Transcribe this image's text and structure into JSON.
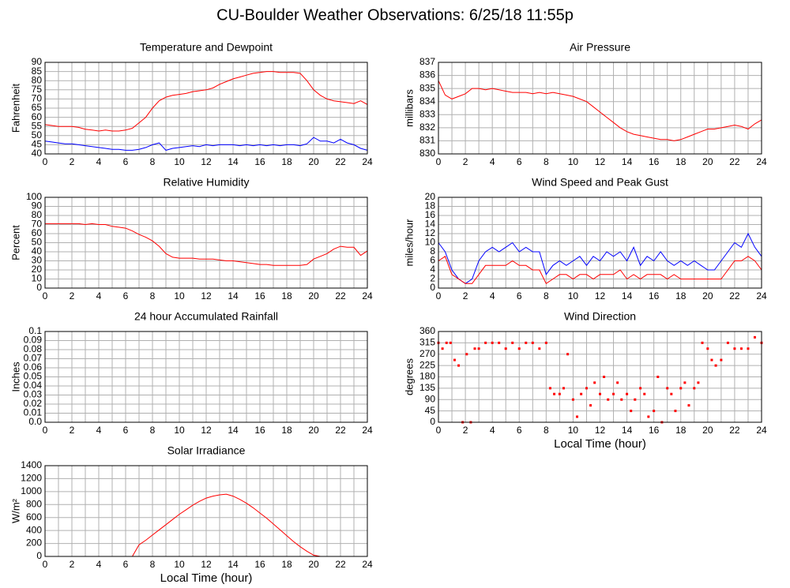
{
  "title": "CU-Boulder Weather Observations: 6/25/18 11:55p",
  "chart_data": [
    {
      "type": "line",
      "title": "Temperature and Dewpoint",
      "ylabel": "Fahrenheit",
      "x": [
        0,
        0.5,
        1,
        1.5,
        2,
        2.5,
        3,
        3.5,
        4,
        4.5,
        5,
        5.5,
        6,
        6.5,
        7,
        7.5,
        8,
        8.5,
        9,
        9.5,
        10,
        10.5,
        11,
        11.5,
        12,
        12.5,
        13,
        13.5,
        14,
        14.5,
        15,
        15.5,
        16,
        16.5,
        17,
        17.5,
        18,
        18.5,
        19,
        19.5,
        20,
        20.5,
        21,
        21.5,
        22,
        22.5,
        23,
        23.5,
        24
      ],
      "series": [
        {
          "color": "#ff0000",
          "values": [
            56,
            55.5,
            55,
            55,
            55,
            54.5,
            53.5,
            53,
            52.5,
            53,
            52.5,
            52.5,
            53,
            54,
            57,
            60,
            65,
            69,
            71,
            72,
            72.5,
            73,
            74,
            74.5,
            75,
            76,
            78,
            79.5,
            81,
            82,
            83,
            84,
            84.5,
            85,
            85,
            84.5,
            84.5,
            84.5,
            84,
            80,
            75,
            72,
            70,
            69,
            68.5,
            68,
            67.5,
            69,
            67
          ]
        },
        {
          "color": "#0000ff",
          "values": [
            47,
            46.5,
            46,
            45.5,
            45.5,
            45,
            44.5,
            44,
            43.5,
            43,
            42.5,
            42.5,
            42,
            42,
            42.5,
            43.5,
            45,
            46,
            42,
            43,
            43.5,
            44,
            44.5,
            44,
            45,
            44.5,
            45,
            45,
            45,
            44.5,
            45,
            44.5,
            45,
            44.5,
            45,
            44.5,
            45,
            45,
            44.5,
            45.5,
            49,
            47,
            47,
            46,
            48,
            46,
            45,
            43,
            42
          ]
        }
      ],
      "xlim": [
        0,
        24
      ],
      "xticks": [
        0,
        2,
        4,
        6,
        8,
        10,
        12,
        14,
        16,
        18,
        20,
        22,
        24
      ],
      "xgrid": [
        0,
        1,
        2,
        3,
        4,
        5,
        6,
        7,
        8,
        9,
        10,
        11,
        12,
        13,
        14,
        15,
        16,
        17,
        18,
        19,
        20,
        21,
        22,
        23,
        24
      ],
      "ylim": [
        40,
        90
      ],
      "yticks": [
        40,
        45,
        50,
        55,
        60,
        65,
        70,
        75,
        80,
        85,
        90
      ],
      "grid": true
    },
    {
      "type": "line",
      "title": "Air Pressure",
      "ylabel": "millibars",
      "x": [
        0,
        0.5,
        1,
        1.5,
        2,
        2.5,
        3,
        3.5,
        4,
        4.5,
        5,
        5.5,
        6,
        6.5,
        7,
        7.5,
        8,
        8.5,
        9,
        9.5,
        10,
        10.5,
        11,
        11.5,
        12,
        12.5,
        13,
        13.5,
        14,
        14.5,
        15,
        15.5,
        16,
        16.5,
        17,
        17.5,
        18,
        18.5,
        19,
        19.5,
        20,
        20.5,
        21,
        21.5,
        22,
        22.5,
        23,
        23.5,
        24
      ],
      "series": [
        {
          "color": "#ff0000",
          "values": [
            835.6,
            834.5,
            834.2,
            834.4,
            834.6,
            835,
            835,
            834.9,
            835,
            834.9,
            834.8,
            834.7,
            834.7,
            834.7,
            834.6,
            834.7,
            834.6,
            834.7,
            834.6,
            834.5,
            834.4,
            834.2,
            834,
            833.6,
            833.2,
            832.8,
            832.4,
            832,
            831.7,
            831.5,
            831.4,
            831.3,
            831.2,
            831.1,
            831.1,
            831,
            831.1,
            831.3,
            831.5,
            831.7,
            831.9,
            831.9,
            832,
            832.1,
            832.2,
            832.1,
            831.9,
            832.3,
            832.6
          ]
        }
      ],
      "xlim": [
        0,
        24
      ],
      "xticks": [
        0,
        2,
        4,
        6,
        8,
        10,
        12,
        14,
        16,
        18,
        20,
        22,
        24
      ],
      "xgrid": [
        0,
        1,
        2,
        3,
        4,
        5,
        6,
        7,
        8,
        9,
        10,
        11,
        12,
        13,
        14,
        15,
        16,
        17,
        18,
        19,
        20,
        21,
        22,
        23,
        24
      ],
      "ylim": [
        830,
        837
      ],
      "yticks": [
        830,
        831,
        832,
        833,
        834,
        835,
        836,
        837
      ],
      "grid": true
    },
    {
      "type": "line",
      "title": "Relative Humidity",
      "ylabel": "Percent",
      "x": [
        0,
        0.5,
        1,
        1.5,
        2,
        2.5,
        3,
        3.5,
        4,
        4.5,
        5,
        5.5,
        6,
        6.5,
        7,
        7.5,
        8,
        8.5,
        9,
        9.5,
        10,
        10.5,
        11,
        11.5,
        12,
        12.5,
        13,
        13.5,
        14,
        14.5,
        15,
        15.5,
        16,
        16.5,
        17,
        17.5,
        18,
        18.5,
        19,
        19.5,
        20,
        20.5,
        21,
        21.5,
        22,
        22.5,
        23,
        23.5,
        24
      ],
      "series": [
        {
          "color": "#ff0000",
          "values": [
            71,
            71,
            71,
            71,
            71,
            71,
            70,
            71,
            70,
            70,
            68,
            67,
            66,
            63,
            59,
            56,
            52,
            46,
            38,
            34,
            33,
            33,
            33,
            32,
            32,
            32,
            31,
            30,
            30,
            29,
            28,
            27,
            26,
            26,
            25,
            25,
            25,
            25,
            25,
            26,
            32,
            35,
            38,
            43,
            46,
            45,
            45,
            36,
            41
          ]
        }
      ],
      "xlim": [
        0,
        24
      ],
      "xticks": [
        0,
        2,
        4,
        6,
        8,
        10,
        12,
        14,
        16,
        18,
        20,
        22,
        24
      ],
      "xgrid": [
        0,
        1,
        2,
        3,
        4,
        5,
        6,
        7,
        8,
        9,
        10,
        11,
        12,
        13,
        14,
        15,
        16,
        17,
        18,
        19,
        20,
        21,
        22,
        23,
        24
      ],
      "ylim": [
        0,
        100
      ],
      "yticks": [
        0,
        10,
        20,
        30,
        40,
        50,
        60,
        70,
        80,
        90,
        100
      ],
      "grid": true
    },
    {
      "type": "line",
      "title": "Wind Speed and Peak Gust",
      "ylabel": "miles/hour",
      "x": [
        0,
        0.5,
        1,
        1.5,
        2,
        2.5,
        3,
        3.5,
        4,
        4.5,
        5,
        5.5,
        6,
        6.5,
        7,
        7.5,
        8,
        8.5,
        9,
        9.5,
        10,
        10.5,
        11,
        11.5,
        12,
        12.5,
        13,
        13.5,
        14,
        14.5,
        15,
        15.5,
        16,
        16.5,
        17,
        17.5,
        18,
        18.5,
        19,
        19.5,
        20,
        20.5,
        21,
        21.5,
        22,
        22.5,
        23,
        23.5,
        24
      ],
      "series": [
        {
          "color": "#0000ff",
          "values": [
            10,
            8,
            4,
            2,
            1,
            2,
            6,
            8,
            9,
            8,
            9,
            10,
            8,
            9,
            8,
            8,
            3,
            5,
            6,
            5,
            6,
            7,
            5,
            7,
            6,
            8,
            7,
            8,
            6,
            9,
            5,
            7,
            6,
            8,
            6,
            5,
            6,
            5,
            6,
            5,
            4,
            4,
            6,
            8,
            10,
            9,
            12,
            9,
            7
          ]
        },
        {
          "color": "#ff0000",
          "values": [
            6,
            7,
            3,
            2,
            1,
            1,
            3,
            5,
            5,
            5,
            5,
            6,
            5,
            5,
            4,
            4,
            1,
            2,
            3,
            3,
            2,
            3,
            3,
            2,
            3,
            3,
            3,
            4,
            2,
            3,
            2,
            3,
            3,
            3,
            2,
            3,
            2,
            2,
            2,
            2,
            2,
            2,
            2,
            4,
            6,
            6,
            7,
            6,
            4
          ]
        }
      ],
      "xlim": [
        0,
        24
      ],
      "xticks": [
        0,
        2,
        4,
        6,
        8,
        10,
        12,
        14,
        16,
        18,
        20,
        22,
        24
      ],
      "xgrid": [
        0,
        1,
        2,
        3,
        4,
        5,
        6,
        7,
        8,
        9,
        10,
        11,
        12,
        13,
        14,
        15,
        16,
        17,
        18,
        19,
        20,
        21,
        22,
        23,
        24
      ],
      "ylim": [
        0,
        20
      ],
      "yticks": [
        0,
        2,
        4,
        6,
        8,
        10,
        12,
        14,
        16,
        18,
        20
      ],
      "grid": true
    },
    {
      "type": "line",
      "title": "24 hour Accumulated Rainfall",
      "ylabel": "Inches",
      "x": [
        0,
        24
      ],
      "series": [
        {
          "color": "#ff0000",
          "values": [
            0,
            0
          ]
        }
      ],
      "xlim": [
        0,
        24
      ],
      "xticks": [
        0,
        2,
        4,
        6,
        8,
        10,
        12,
        14,
        16,
        18,
        20,
        22,
        24
      ],
      "xgrid": [
        0,
        1,
        2,
        3,
        4,
        5,
        6,
        7,
        8,
        9,
        10,
        11,
        12,
        13,
        14,
        15,
        16,
        17,
        18,
        19,
        20,
        21,
        22,
        23,
        24
      ],
      "ylim": [
        0,
        0.1
      ],
      "yticks": [
        {
          "value": 0,
          "label": "0.0"
        },
        0.01,
        0.02,
        0.03,
        0.04,
        0.05,
        0.06,
        0.07,
        0.08,
        0.09,
        0.1
      ],
      "grid": true
    },
    {
      "type": "scatter",
      "title": "Wind Direction",
      "ylabel": "degrees",
      "xlabel": "Local Time (hour)",
      "x": [
        0,
        0.3,
        0.6,
        0.9,
        1.2,
        1.5,
        1.8,
        2.1,
        2.4,
        2.7,
        3,
        3.5,
        4,
        4.5,
        5,
        5.5,
        6,
        6.5,
        7,
        7.5,
        8,
        8.3,
        8.6,
        9,
        9.3,
        9.6,
        10,
        10.3,
        10.6,
        11,
        11.3,
        11.6,
        12,
        12.3,
        12.6,
        13,
        13.3,
        13.6,
        14,
        14.3,
        14.6,
        15,
        15.3,
        15.6,
        16,
        16.3,
        16.6,
        17,
        17.3,
        17.6,
        18,
        18.3,
        18.6,
        19,
        19.3,
        19.6,
        20,
        20.3,
        20.6,
        21,
        21.5,
        22,
        22.5,
        23,
        23.5,
        24
      ],
      "series": [
        {
          "color": "#ff0000",
          "values": [
            315,
            292,
            315,
            315,
            247,
            225,
            0,
            270,
            0,
            292,
            292,
            315,
            315,
            315,
            292,
            315,
            292,
            315,
            315,
            292,
            315,
            135,
            112,
            112,
            135,
            270,
            90,
            22,
            112,
            135,
            67,
            157,
            112,
            180,
            90,
            112,
            157,
            90,
            112,
            45,
            90,
            135,
            112,
            22,
            45,
            180,
            0,
            135,
            112,
            45,
            135,
            157,
            67,
            135,
            157,
            315,
            292,
            247,
            225,
            247,
            315,
            292,
            292,
            292,
            337,
            315
          ]
        }
      ],
      "xlim": [
        0,
        24
      ],
      "xticks": [
        0,
        2,
        4,
        6,
        8,
        10,
        12,
        14,
        16,
        18,
        20,
        22,
        24
      ],
      "xgrid": [
        0,
        1,
        2,
        3,
        4,
        5,
        6,
        7,
        8,
        9,
        10,
        11,
        12,
        13,
        14,
        15,
        16,
        17,
        18,
        19,
        20,
        21,
        22,
        23,
        24
      ],
      "ylim": [
        0,
        360
      ],
      "yticks": [
        0,
        45,
        90,
        135,
        180,
        225,
        270,
        315,
        360
      ],
      "grid": true
    },
    {
      "type": "line",
      "title": "Solar Irradiance",
      "ylabel": "W/m²",
      "xlabel": "Local Time (hour)",
      "x": [
        0,
        0.5,
        1,
        1.5,
        2,
        2.5,
        3,
        3.5,
        4,
        4.5,
        5,
        5.5,
        6,
        6.5,
        7,
        7.5,
        8,
        8.5,
        9,
        9.5,
        10,
        10.5,
        11,
        11.5,
        12,
        12.5,
        13,
        13.5,
        14,
        14.5,
        15,
        15.5,
        16,
        16.5,
        17,
        17.5,
        18,
        18.5,
        19,
        19.5,
        20,
        20.5,
        21,
        21.5,
        22,
        22.5,
        23,
        23.5,
        24
      ],
      "series": [
        {
          "color": "#ff0000",
          "values": [
            0,
            0,
            0,
            0,
            0,
            0,
            0,
            0,
            0,
            0,
            0,
            0,
            0,
            0,
            180,
            250,
            330,
            410,
            490,
            570,
            650,
            720,
            790,
            850,
            900,
            930,
            950,
            960,
            930,
            880,
            820,
            750,
            670,
            590,
            500,
            410,
            320,
            230,
            150,
            80,
            20,
            0,
            0,
            0,
            0,
            0,
            0,
            0,
            0
          ]
        }
      ],
      "xlim": [
        0,
        24
      ],
      "xticks": [
        0,
        2,
        4,
        6,
        8,
        10,
        12,
        14,
        16,
        18,
        20,
        22,
        24
      ],
      "xgrid": [
        0,
        1,
        2,
        3,
        4,
        5,
        6,
        7,
        8,
        9,
        10,
        11,
        12,
        13,
        14,
        15,
        16,
        17,
        18,
        19,
        20,
        21,
        22,
        23,
        24
      ],
      "ylim": [
        0,
        1400
      ],
      "yticks": [
        0,
        200,
        400,
        600,
        800,
        1000,
        1200,
        1400
      ],
      "grid": true
    }
  ]
}
